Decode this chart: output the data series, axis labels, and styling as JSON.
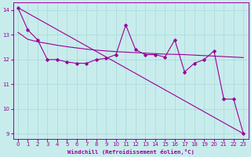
{
  "xlabel": "Windchill (Refroidissement éolien,°C)",
  "bg_color": "#c8ecec",
  "grid_color": "#b0dede",
  "line_color": "#990099",
  "xlim": [
    -0.5,
    23.5
  ],
  "ylim": [
    8.8,
    14.3
  ],
  "yticks": [
    9,
    10,
    11,
    12,
    13,
    14
  ],
  "xticks": [
    0,
    1,
    2,
    3,
    4,
    5,
    6,
    7,
    8,
    9,
    10,
    11,
    12,
    13,
    14,
    15,
    16,
    17,
    18,
    19,
    20,
    21,
    22,
    23
  ],
  "line1_x": [
    0,
    1,
    2,
    3,
    4,
    5,
    6,
    7,
    8,
    9,
    10,
    11,
    12,
    13,
    14,
    15,
    16,
    17,
    18,
    19,
    20,
    21,
    22,
    23
  ],
  "line1_y": [
    14.1,
    13.2,
    12.8,
    12.0,
    12.0,
    11.9,
    11.85,
    11.85,
    12.0,
    12.05,
    12.2,
    13.4,
    12.4,
    12.2,
    12.2,
    12.1,
    12.8,
    11.5,
    11.85,
    12.0,
    12.35,
    10.4,
    10.4,
    9.0
  ],
  "line2_x": [
    0,
    1,
    2,
    3,
    4,
    5,
    6,
    7,
    8,
    9,
    10,
    11,
    12,
    13,
    14,
    15,
    16,
    17,
    18,
    19,
    20,
    21,
    22,
    23
  ],
  "line2_y": [
    13.1,
    12.82,
    12.72,
    12.65,
    12.58,
    12.52,
    12.47,
    12.42,
    12.38,
    12.35,
    12.32,
    12.3,
    12.28,
    12.26,
    12.24,
    12.22,
    12.21,
    12.2,
    12.18,
    12.16,
    12.14,
    12.12,
    12.1,
    12.08
  ],
  "line3_x": [
    0,
    23
  ],
  "line3_y": [
    14.1,
    9.0
  ]
}
